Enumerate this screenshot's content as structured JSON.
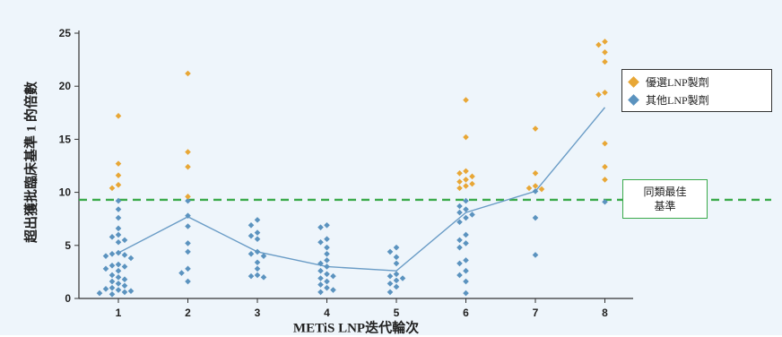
{
  "chart_data": {
    "type": "scatter",
    "xlabel": "METiS LNP迭代輪次",
    "ylabel": "超出獲批臨床基準 1 的倍數",
    "x_ticks": [
      "1",
      "2",
      "3",
      "4",
      "5",
      "6",
      "7",
      "8"
    ],
    "y_ticks": [
      0,
      5,
      10,
      15,
      20,
      25
    ],
    "ylim": [
      0,
      25
    ],
    "grid": false,
    "legend_position": "right",
    "colors": {
      "preferred": "#e8a736",
      "other": "#5b93bf",
      "line": "#6a9cc6",
      "benchmark": "#3aaa4a"
    },
    "series": [
      {
        "name": "優選LNP製劑",
        "color": "#e8a736",
        "marker": "diamond",
        "points": [
          [
            1,
            17.2
          ],
          [
            1,
            12.7
          ],
          [
            1,
            11.6
          ],
          [
            1,
            10.7
          ],
          [
            1,
            10.4
          ],
          [
            2,
            21.2
          ],
          [
            2,
            13.8
          ],
          [
            2,
            12.4
          ],
          [
            2,
            9.6
          ],
          [
            6,
            18.7
          ],
          [
            6,
            15.2
          ],
          [
            6,
            12.0
          ],
          [
            6,
            11.8
          ],
          [
            6,
            11.5
          ],
          [
            6,
            11.2
          ],
          [
            6,
            11.0
          ],
          [
            6,
            10.8
          ],
          [
            6,
            10.6
          ],
          [
            6,
            10.4
          ],
          [
            7,
            16.0
          ],
          [
            7,
            11.8
          ],
          [
            7,
            10.6
          ],
          [
            7,
            10.4
          ],
          [
            7,
            10.3
          ],
          [
            8,
            24.2
          ],
          [
            8,
            23.9
          ],
          [
            8,
            23.2
          ],
          [
            8,
            22.3
          ],
          [
            8,
            19.4
          ],
          [
            8,
            19.2
          ],
          [
            8,
            14.6
          ],
          [
            8,
            12.4
          ],
          [
            8,
            11.2
          ]
        ]
      },
      {
        "name": "其他LNP製劑",
        "color": "#5b93bf",
        "marker": "diamond",
        "points": [
          [
            1,
            9.2
          ],
          [
            1,
            8.4
          ],
          [
            1,
            7.6
          ],
          [
            1,
            6.6
          ],
          [
            1,
            6.0
          ],
          [
            1,
            5.8
          ],
          [
            1,
            5.5
          ],
          [
            1,
            5.3
          ],
          [
            1,
            4.3
          ],
          [
            1,
            4.2
          ],
          [
            1,
            4.1
          ],
          [
            1,
            4.0
          ],
          [
            1,
            3.8
          ],
          [
            1,
            3.2
          ],
          [
            1,
            3.1
          ],
          [
            1,
            3.0
          ],
          [
            1,
            2.8
          ],
          [
            1,
            2.6
          ],
          [
            1,
            2.2
          ],
          [
            1,
            2.0
          ],
          [
            1,
            1.8
          ],
          [
            1,
            1.6
          ],
          [
            1,
            1.4
          ],
          [
            1,
            1.2
          ],
          [
            1,
            1.0
          ],
          [
            1,
            0.9
          ],
          [
            1,
            0.8
          ],
          [
            1,
            0.7
          ],
          [
            1,
            0.6
          ],
          [
            1,
            0.5
          ],
          [
            1,
            0.4
          ],
          [
            2,
            9.2
          ],
          [
            2,
            7.8
          ],
          [
            2,
            6.8
          ],
          [
            2,
            5.2
          ],
          [
            2,
            4.4
          ],
          [
            2,
            2.8
          ],
          [
            2,
            2.4
          ],
          [
            2,
            1.6
          ],
          [
            3,
            7.4
          ],
          [
            3,
            6.9
          ],
          [
            3,
            6.2
          ],
          [
            3,
            5.9
          ],
          [
            3,
            5.6
          ],
          [
            3,
            4.4
          ],
          [
            3,
            4.2
          ],
          [
            3,
            4.0
          ],
          [
            3,
            3.4
          ],
          [
            3,
            2.8
          ],
          [
            3,
            2.2
          ],
          [
            3,
            2.1
          ],
          [
            3,
            2.0
          ],
          [
            4,
            6.9
          ],
          [
            4,
            6.7
          ],
          [
            4,
            5.6
          ],
          [
            4,
            5.3
          ],
          [
            4,
            4.8
          ],
          [
            4,
            4.2
          ],
          [
            4,
            3.6
          ],
          [
            4,
            3.3
          ],
          [
            4,
            3.0
          ],
          [
            4,
            2.6
          ],
          [
            4,
            2.3
          ],
          [
            4,
            2.1
          ],
          [
            4,
            1.9
          ],
          [
            4,
            1.6
          ],
          [
            4,
            1.3
          ],
          [
            4,
            1.0
          ],
          [
            4,
            0.8
          ],
          [
            4,
            0.6
          ],
          [
            5,
            4.8
          ],
          [
            5,
            4.4
          ],
          [
            5,
            3.9
          ],
          [
            5,
            3.3
          ],
          [
            5,
            2.3
          ],
          [
            5,
            2.1
          ],
          [
            5,
            1.9
          ],
          [
            5,
            1.7
          ],
          [
            5,
            1.4
          ],
          [
            5,
            1.1
          ],
          [
            5,
            0.6
          ],
          [
            6,
            9.2
          ],
          [
            6,
            8.7
          ],
          [
            6,
            8.4
          ],
          [
            6,
            8.1
          ],
          [
            6,
            7.9
          ],
          [
            6,
            7.6
          ],
          [
            6,
            7.2
          ],
          [
            6,
            6.0
          ],
          [
            6,
            5.5
          ],
          [
            6,
            5.2
          ],
          [
            6,
            4.8
          ],
          [
            6,
            3.6
          ],
          [
            6,
            3.3
          ],
          [
            6,
            2.6
          ],
          [
            6,
            2.2
          ],
          [
            6,
            1.6
          ],
          [
            6,
            0.5
          ],
          [
            7,
            10.1
          ],
          [
            7,
            7.6
          ],
          [
            7,
            4.1
          ],
          [
            8,
            9.1
          ]
        ]
      }
    ],
    "trend_line": {
      "x": [
        1,
        2,
        3,
        4,
        5,
        6,
        7,
        8
      ],
      "y": [
        4.3,
        7.7,
        4.4,
        3.0,
        2.6,
        8.1,
        10.1,
        18.0
      ]
    },
    "reference_line": {
      "y": 9.3,
      "label_line1": "同類最佳",
      "label_line2": "基準",
      "style": "dashed"
    }
  }
}
